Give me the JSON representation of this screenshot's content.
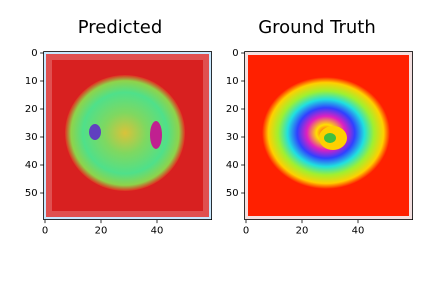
{
  "chart_data": [
    {
      "type": "image",
      "title": "Predicted",
      "xlim": [
        -0.5,
        59.5
      ],
      "ylim": [
        59.5,
        -0.5
      ],
      "xticks": [
        0,
        20,
        40
      ],
      "yticks": [
        0,
        10,
        20,
        30,
        40,
        50
      ]
    },
    {
      "type": "image",
      "title": "Ground Truth",
      "xlim": [
        -0.5,
        59.5
      ],
      "ylim": [
        59.5,
        -0.5
      ],
      "xticks": [
        0,
        20,
        40
      ],
      "yticks": [
        0,
        10,
        20,
        30,
        40,
        50
      ]
    }
  ]
}
